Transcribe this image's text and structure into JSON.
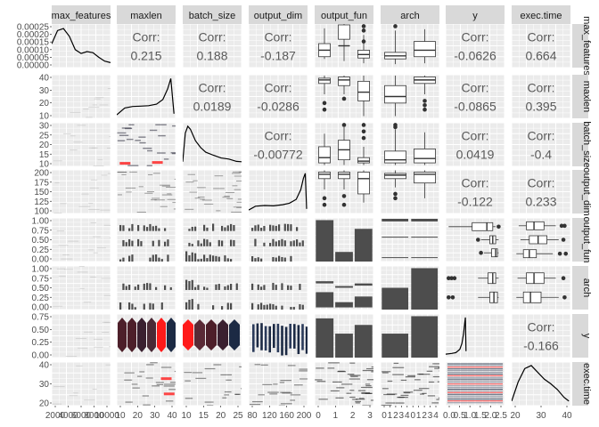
{
  "chart_data": {
    "type": "pairs",
    "title": "",
    "variables": [
      "max_features",
      "maxlen",
      "batch_size",
      "output_dim",
      "output_fun",
      "arch",
      "y",
      "exec.time"
    ],
    "row_strip_labels": [
      "max_features",
      "maxlen",
      "batch_size",
      "output_dim",
      "output_fun",
      "arch",
      "y",
      "exec.time"
    ],
    "corr_label": "Corr:",
    "correlations": [
      {
        "row": 0,
        "col": 1,
        "value": "0.215"
      },
      {
        "row": 0,
        "col": 2,
        "value": "0.188"
      },
      {
        "row": 0,
        "col": 3,
        "value": "-0.187"
      },
      {
        "row": 0,
        "col": 6,
        "value": "-0.0626"
      },
      {
        "row": 0,
        "col": 7,
        "value": "0.664"
      },
      {
        "row": 1,
        "col": 2,
        "value": "0.0189"
      },
      {
        "row": 1,
        "col": 3,
        "value": "-0.0286"
      },
      {
        "row": 1,
        "col": 6,
        "value": "-0.0865"
      },
      {
        "row": 1,
        "col": 7,
        "value": "0.395"
      },
      {
        "row": 2,
        "col": 3,
        "value": "-0.00772"
      },
      {
        "row": 2,
        "col": 6,
        "value": "0.0419"
      },
      {
        "row": 2,
        "col": 7,
        "value": "-0.4"
      },
      {
        "row": 3,
        "col": 6,
        "value": "-0.122"
      },
      {
        "row": 3,
        "col": 7,
        "value": "0.233"
      },
      {
        "row": 6,
        "col": 7,
        "value": "-0.166"
      }
    ],
    "row_ticks": [
      {
        "labels": [
          "0.00025",
          "0.00020",
          "0.00015",
          "0.00010",
          "0.00005",
          "0.00000"
        ],
        "range": [
          0,
          0.00026
        ]
      },
      {
        "labels": [
          "40",
          "30",
          "20",
          "10"
        ],
        "range": [
          7,
          42
        ]
      },
      {
        "labels": [
          "30",
          "25",
          "20",
          "15",
          "10"
        ],
        "range": [
          8,
          31
        ]
      },
      {
        "labels": [
          "200",
          "175",
          "150",
          "125",
          "100"
        ],
        "range": [
          88,
          204
        ]
      },
      {
        "labels": [
          "1.00",
          "0.75",
          "0.50",
          "0.25",
          "0.00"
        ],
        "range": [
          0,
          1
        ],
        "dense": true
      },
      {
        "labels": [
          "1.00",
          "0.75",
          "0.50",
          "0.25",
          "0.00"
        ],
        "range": [
          0,
          1
        ],
        "dense": true
      },
      {
        "labels": [
          "0.75",
          "0.50",
          "0.25",
          "0.00"
        ],
        "range": [
          -0.1,
          0.9
        ]
      },
      {
        "labels": [
          "40",
          "30",
          "20"
        ],
        "range": [
          12,
          48
        ]
      }
    ],
    "col_ticks": [
      {
        "labels": [
          "2000",
          "4000",
          "6000",
          "8000",
          "10000"
        ],
        "range": [
          1500,
          11500
        ]
      },
      {
        "labels": [
          "10",
          "20",
          "30",
          "40"
        ],
        "range": [
          7,
          44
        ]
      },
      {
        "labels": [
          "10",
          "15",
          "20",
          "25"
        ],
        "range": [
          8,
          31
        ]
      },
      {
        "labels": [
          "80",
          "120",
          "160",
          "200"
        ],
        "range": [
          75,
          205
        ]
      },
      {
        "labels": [
          "0",
          "1",
          "2",
          "3"
        ],
        "range": [
          -0.6,
          3.6
        ]
      },
      {
        "labels": [
          "0",
          "1",
          "2",
          "3",
          "4",
          "0",
          "1",
          "2",
          "3",
          "4"
        ],
        "range": [
          -0.5,
          9.5
        ]
      },
      {
        "labels": [
          "0.0",
          "0.5",
          "1.0",
          "1.5",
          "2.0",
          "2.5"
        ],
        "range": [
          -0.1,
          2.8
        ]
      },
      {
        "labels": [
          "20",
          "30",
          "40"
        ],
        "range": [
          12,
          48
        ]
      }
    ],
    "density_curves": [
      {
        "var": "max_features",
        "x": [
          1500,
          2500,
          3500,
          4500,
          5500,
          6500,
          7500,
          8500,
          9500,
          10500,
          11500
        ],
        "y": [
          0.55,
          0.9,
          0.95,
          0.75,
          0.4,
          0.3,
          0.35,
          0.32,
          0.2,
          0.1,
          0.06
        ]
      },
      {
        "var": "maxlen",
        "x": [
          7,
          12,
          17,
          22,
          27,
          32,
          36,
          39,
          41,
          43
        ],
        "y": [
          0.02,
          0.2,
          0.24,
          0.25,
          0.26,
          0.3,
          0.42,
          0.7,
          0.97,
          0.05
        ]
      },
      {
        "var": "batch_size",
        "x": [
          8,
          9,
          10,
          11,
          13,
          15,
          17,
          20,
          23,
          26,
          29,
          31
        ],
        "y": [
          0.05,
          0.8,
          0.98,
          0.9,
          0.6,
          0.42,
          0.3,
          0.22,
          0.15,
          0.12,
          0.06,
          0.05
        ]
      },
      {
        "var": "output_dim",
        "x": [
          75,
          90,
          110,
          130,
          150,
          165,
          180,
          190,
          196,
          200,
          203
        ],
        "y": [
          0.02,
          0.12,
          0.14,
          0.13,
          0.16,
          0.2,
          0.3,
          0.55,
          0.85,
          0.98,
          0.05
        ]
      },
      {
        "var": "y",
        "x": [
          -0.1,
          0.2,
          0.4,
          0.6,
          0.7,
          0.78,
          0.83,
          0.87,
          0.9
        ],
        "y": [
          0.02,
          0.04,
          0.06,
          0.15,
          0.3,
          0.55,
          0.8,
          0.98,
          0.1
        ]
      },
      {
        "var": "exec.time",
        "x": [
          12,
          16,
          20,
          24,
          28,
          32,
          36,
          40,
          44,
          47
        ],
        "y": [
          0.05,
          0.55,
          0.9,
          0.98,
          0.8,
          0.62,
          0.5,
          0.35,
          0.15,
          0.05
        ]
      }
    ],
    "colors": {
      "panel": "#ebebeb",
      "grid": "#ffffff",
      "strip": "#d9d9d9",
      "bar": "#4d4d4d",
      "box_fill": "#ffffff",
      "line": "#000000",
      "red": "#ff1a1a",
      "dark_red": "#4d1f2a",
      "navy": "#1c2a44"
    }
  }
}
